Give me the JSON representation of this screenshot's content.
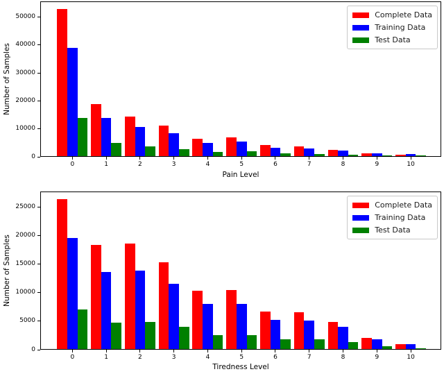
{
  "figure": {
    "background": "#ffffff",
    "axis_color": "#000000",
    "text_color": "#000000"
  },
  "chart_data": [
    {
      "type": "bar",
      "title": "",
      "xlabel": "Pain Level",
      "ylabel": "Number of Samples",
      "categories": [
        0,
        1,
        2,
        3,
        4,
        5,
        6,
        7,
        8,
        9,
        10
      ],
      "xlim": [
        -0.95,
        10.9
      ],
      "ylim": [
        0,
        55600
      ],
      "yticks": [
        0,
        10000,
        20000,
        30000,
        40000,
        50000
      ],
      "bar_width": 0.3,
      "grid": false,
      "legend_position": "upper right",
      "series": [
        {
          "name": "Complete Data",
          "color": "#ff0000",
          "values": [
            52800,
            18800,
            14100,
            10900,
            6300,
            6700,
            3900,
            3600,
            2300,
            950,
            600
          ]
        },
        {
          "name": "Training Data",
          "color": "#0000ff",
          "values": [
            38900,
            13800,
            10500,
            8300,
            4800,
            5200,
            2900,
            2700,
            1900,
            900,
            650
          ]
        },
        {
          "name": "Test Data",
          "color": "#008000",
          "values": [
            13800,
            4700,
            3500,
            2400,
            1600,
            1700,
            1000,
            800,
            500,
            250,
            130
          ]
        }
      ]
    },
    {
      "type": "bar",
      "title": "",
      "xlabel": "Tiredness Level",
      "ylabel": "Number of Samples",
      "categories": [
        0,
        1,
        2,
        3,
        4,
        5,
        6,
        7,
        8,
        9,
        10
      ],
      "xlim": [
        -0.95,
        10.9
      ],
      "ylim": [
        0,
        27700
      ],
      "yticks": [
        0,
        5000,
        10000,
        15000,
        20000,
        25000
      ],
      "bar_width": 0.3,
      "grid": false,
      "legend_position": "upper right",
      "series": [
        {
          "name": "Complete Data",
          "color": "#ff0000",
          "values": [
            26300,
            18300,
            18600,
            15300,
            10300,
            10400,
            6600,
            6500,
            4800,
            2000,
            900
          ]
        },
        {
          "name": "Training Data",
          "color": "#0000ff",
          "values": [
            19500,
            13600,
            13800,
            11500,
            7900,
            7900,
            5100,
            5000,
            3900,
            1700,
            800
          ]
        },
        {
          "name": "Test Data",
          "color": "#008000",
          "values": [
            7000,
            4600,
            4800,
            3900,
            2500,
            2500,
            1700,
            1650,
            1200,
            550,
            160
          ]
        }
      ]
    }
  ]
}
